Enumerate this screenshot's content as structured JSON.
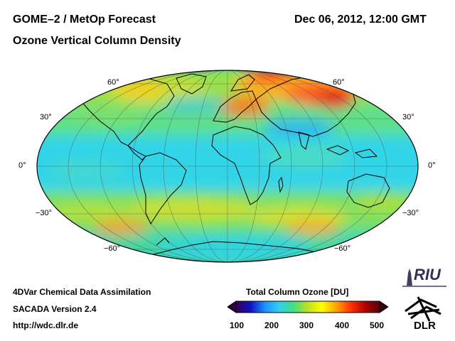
{
  "header": {
    "product": "GOME–2 / MetOp Forecast",
    "datetime": "Dec 06, 2012, 12:00 GMT",
    "quantity": "Ozone Vertical Column Density"
  },
  "map": {
    "projection": "Hammer-Aitoff",
    "lat_labels_left": [
      "60°",
      "30°",
      "0°",
      "−30°",
      "−60°"
    ],
    "lat_labels_right": [
      "60°",
      "30°",
      "0°",
      "−30°",
      "−60°"
    ]
  },
  "colorbar": {
    "title": "Total Column Ozone [DU]",
    "ticks": [
      "100",
      "200",
      "300",
      "400",
      "500"
    ],
    "colors": [
      "#3a0050",
      "#1010c0",
      "#1e90ff",
      "#30d0f0",
      "#40e080",
      "#c0e020",
      "#ffff00",
      "#ffa000",
      "#ff3000",
      "#b00000",
      "#500010"
    ]
  },
  "footer": {
    "line1": "4DVar Chemical Data Assimilation",
    "line2": "SACADA Version 2.4",
    "line3": "http://wdc.dlr.de"
  },
  "logos": {
    "riu": "RIU",
    "dlr": "DLR"
  }
}
